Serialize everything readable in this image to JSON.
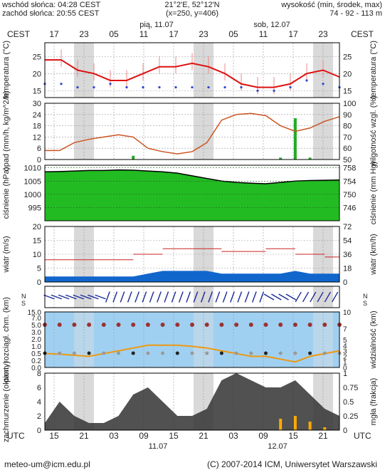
{
  "header": {
    "sunrise": "wschód słońca: 04:28 CEST",
    "sunset": "zachód słońca: 20:55 CEST",
    "coords": "21°2'E, 52°12'N",
    "grid": "(x=250, y=406)",
    "height_title": "wysokość (min, środek, max)",
    "height_values": "74 - 92 - 113 m"
  },
  "days": {
    "day1": "pią, 11.07",
    "day2": "sob, 12.07"
  },
  "axis_top": {
    "zone": "CEST",
    "hours": [
      "17",
      "23",
      "05",
      "11",
      "17",
      "23",
      "05",
      "11",
      "17",
      "23"
    ]
  },
  "axis_bottom": {
    "zone": "UTC",
    "hours": [
      "15",
      "21",
      "03",
      "09",
      "15",
      "21",
      "03",
      "09",
      "15",
      "21"
    ],
    "dates": [
      "11.07",
      "12.07"
    ]
  },
  "footer": {
    "email": "meteo-um@icm.edu.pl",
    "copyright": "(C) 2007-2014 ICM, Uniwersytet Warszawski"
  },
  "colors": {
    "temp": "#dd1111",
    "dew": "#3344cc",
    "precip": "#22aa22",
    "humidity": "#cc5522",
    "pressure": "#22bb22",
    "wind": "#1166cc",
    "gust": "#cc2222",
    "cloud": "#333333",
    "fog": "#ffaa00",
    "night": "#d9d9d9"
  },
  "chart_data": [
    {
      "type": "line",
      "name": "temperature",
      "ylabel_left": "temperatura (°C)",
      "ylabel_right": "temperatura (°C)",
      "ylim": [
        13,
        29
      ],
      "yticks": [
        15,
        20,
        25
      ],
      "hours_from_start": [
        0,
        3,
        6,
        9,
        12,
        15,
        18,
        21,
        24,
        27,
        30,
        33,
        36,
        39,
        42,
        45,
        48,
        51,
        54
      ],
      "temperature": [
        24,
        24,
        21,
        20,
        18,
        18,
        20,
        22,
        22,
        23,
        22,
        20,
        17,
        16,
        16,
        17,
        20,
        21,
        19
      ],
      "dew_point": [
        17,
        17,
        16,
        16,
        17,
        16,
        16,
        16,
        16,
        16,
        16,
        16,
        16,
        15,
        15,
        16,
        18,
        17,
        16
      ]
    },
    {
      "type": "bar",
      "name": "precipitation",
      "ylabel_left": "opad (mm/h, kg/m^2/h)",
      "ylabel_right": "wilgotność wzgl. (%)",
      "ylim_left": [
        0,
        30
      ],
      "yticks_left": [
        0,
        6,
        12,
        18,
        24,
        30
      ],
      "ylim_right": [
        50,
        100
      ],
      "yticks_right": [
        50,
        60,
        70,
        80,
        90,
        100
      ],
      "humidity": [
        58,
        58,
        65,
        68,
        70,
        72,
        70,
        60,
        57,
        55,
        57,
        65,
        85,
        90,
        91,
        89,
        80,
        75,
        78,
        84,
        88
      ],
      "precip": [
        0,
        0,
        0,
        0,
        0,
        0,
        2,
        0,
        0,
        0,
        0,
        0,
        0,
        0,
        0,
        0,
        1,
        22,
        1,
        0,
        0
      ]
    },
    {
      "type": "area",
      "name": "pressure",
      "ylabel_left": "ciśnienie (hPa)",
      "ylabel_right": "ciśnienie (mm Hg)",
      "ylim_left": [
        990,
        1011
      ],
      "yticks_left": [
        995,
        1000,
        1005,
        1010
      ],
      "yticks_right": [
        746,
        750,
        754,
        758
      ],
      "pressure": [
        1008.5,
        1008.6,
        1008.8,
        1009,
        1009,
        1009.2,
        1009.1,
        1008.8,
        1008.5,
        1008,
        1007,
        1006,
        1005,
        1004.5,
        1004.2,
        1004,
        1004.5,
        1005,
        1005.2,
        1005.3,
        1005.4
      ]
    },
    {
      "type": "line",
      "name": "wind",
      "ylabel_left": "wiatr (m/s)",
      "ylabel_right": "wiatr (km/h)",
      "ylim_left": [
        0,
        20
      ],
      "yticks_left": [
        0,
        5,
        10,
        15,
        20
      ],
      "yticks_right": [
        0,
        18,
        36,
        54,
        72
      ],
      "wind": [
        2,
        2,
        2,
        2,
        2,
        2,
        2,
        3,
        4,
        4,
        4,
        4,
        3,
        3,
        3,
        3,
        3,
        4,
        3,
        3,
        3
      ],
      "gust": [
        8,
        8,
        8,
        8,
        8,
        8,
        10,
        10,
        12,
        12,
        12,
        12,
        11,
        11,
        11,
        12,
        12,
        10,
        10,
        9,
        9
      ]
    },
    {
      "type": "scatter",
      "name": "wind_direction",
      "ylabel_left": "N S W E",
      "ylabel_right": "N S W E"
    },
    {
      "type": "scatter",
      "name": "cloud_base_visibility",
      "ylabel_left": "pion. rozciągł. chm. (km)",
      "ylabel_right": "widzialność (km)",
      "yticks_left": [
        "0.0",
        "0.2",
        "0.5",
        "1.0",
        "2.0",
        "3.0",
        "5.0",
        "7.0",
        "15.0"
      ],
      "yticks_right": [
        0,
        1,
        2,
        3,
        4,
        5,
        7,
        10
      ],
      "visibility": [
        2.5,
        2.4,
        2.2,
        2.0,
        2.5,
        3.0,
        3.5,
        4.0,
        4.0,
        4.0,
        3.8,
        3.5,
        3.0,
        2.5,
        2.0,
        2.0,
        1.5,
        1.0,
        2.0,
        2.5,
        3.0
      ]
    },
    {
      "type": "area",
      "name": "cloud_cover",
      "ylabel_left": "zachmurzenie (oktanty)",
      "ylabel_right": "mgła (frakcja)",
      "yticks_left": [
        0,
        2,
        4,
        6,
        8
      ],
      "yticks_right": [
        "0",
        "0.25",
        "0.5",
        "0.75",
        "1"
      ],
      "cloud": [
        1,
        4,
        2,
        1,
        1,
        2,
        5,
        6,
        4,
        2,
        2,
        3,
        7,
        8,
        7,
        6,
        6,
        7,
        5,
        3,
        2
      ],
      "fog": [
        0,
        0,
        0,
        0,
        0,
        0,
        0,
        0,
        0,
        0,
        0,
        0,
        0,
        0,
        0,
        0,
        0.2,
        0.25,
        0.15,
        0.05,
        0
      ]
    }
  ]
}
